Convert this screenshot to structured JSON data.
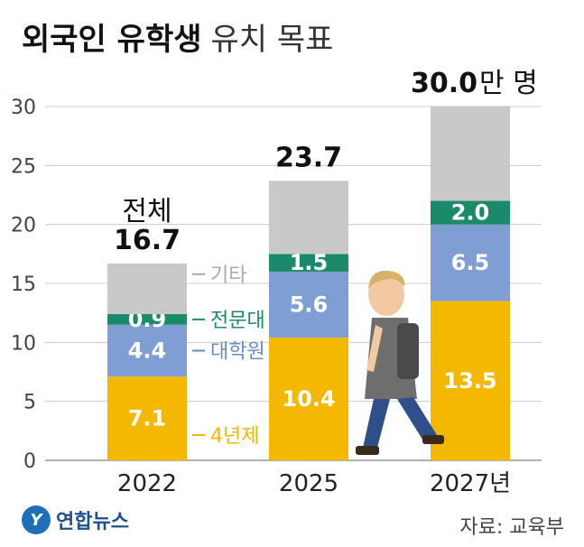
{
  "title": {
    "bold": "외국인 유학생",
    "light": "유치 목표"
  },
  "chart_data": {
    "type": "bar",
    "stacked": true,
    "categories": [
      "2022",
      "2025",
      "2027년"
    ],
    "series": [
      {
        "name": "4년제",
        "values": [
          7.1,
          10.4,
          13.5
        ],
        "color": "#f5b800",
        "label_color": "#f5b800"
      },
      {
        "name": "대학원",
        "values": [
          4.4,
          5.6,
          6.5
        ],
        "color": "#7f9ed4",
        "label_color": "#6a8cc9"
      },
      {
        "name": "전문대",
        "values": [
          0.9,
          1.5,
          2.0
        ],
        "color": "#1a8a6a",
        "label_color": "#1a8a6a"
      },
      {
        "name": "기타",
        "values": [
          4.3,
          6.2,
          8.0
        ],
        "color": "#c9c9c9",
        "label_color": "#aaaaaa"
      }
    ],
    "totals": [
      {
        "value": "16.7",
        "prefix": "전체",
        "unit": ""
      },
      {
        "value": "23.7",
        "prefix": "",
        "unit": ""
      },
      {
        "value": "30.0",
        "prefix": "",
        "unit": "만 명"
      }
    ],
    "yticks": [
      "0",
      "5",
      "10",
      "15",
      "20",
      "25",
      "30"
    ],
    "ylim": [
      0,
      30
    ],
    "grid": true,
    "legend_position": "right of first bar"
  },
  "footer": {
    "logo_mark": "Y",
    "logo_text": "연합뉴스",
    "source": "자료: 교육부"
  },
  "colors": {
    "bg": "#ffffff",
    "grid": "#cccccc"
  }
}
